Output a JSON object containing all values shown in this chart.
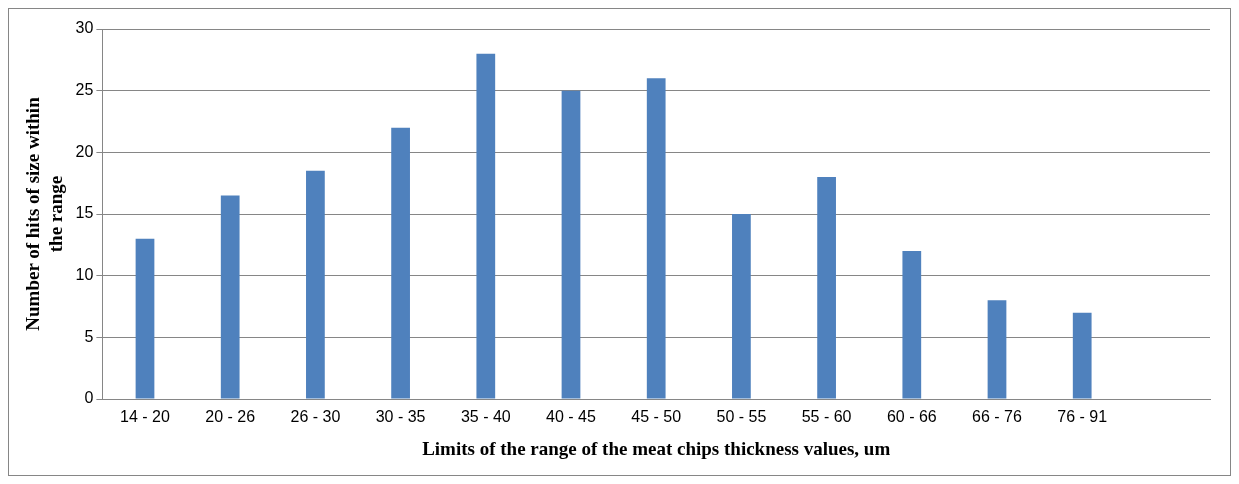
{
  "chart_data": {
    "type": "bar",
    "xlabel": "Limits of the range of the meat chips thickness values, um",
    "ylabel": "Number of hits of size within the range",
    "categories": [
      "14 - 20",
      "20 - 26",
      "26 - 30",
      "30 - 35",
      "35 - 40",
      "40 - 45",
      "45 - 50",
      "50 - 55",
      "55 - 60",
      "60 - 66",
      "66 - 76",
      "76 - 91",
      null
    ],
    "values": [
      13,
      16.5,
      18.5,
      22,
      28,
      25,
      26,
      15,
      18,
      12,
      8,
      7,
      null
    ],
    "color": "#4f81bd",
    "ylim": [
      0,
      30
    ],
    "yticks": [
      0,
      5,
      10,
      15,
      20,
      25,
      30
    ],
    "grid": "y",
    "legend": false
  }
}
